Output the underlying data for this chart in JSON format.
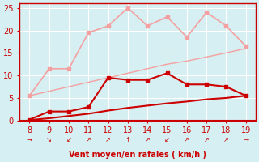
{
  "x": [
    8,
    9,
    10,
    11,
    12,
    13,
    14,
    15,
    16,
    17,
    18,
    19
  ],
  "line_light_pink": [
    5.5,
    11.5,
    11.5,
    19.5,
    21.0,
    25.0,
    21.0,
    23.0,
    18.5,
    24.0,
    21.0,
    16.5
  ],
  "line_diagonal": [
    5.5,
    6.5,
    7.5,
    8.5,
    9.5,
    10.5,
    11.5,
    12.5,
    13.2,
    14.1,
    15.0,
    16.0
  ],
  "line_dark_red": [
    0.2,
    2.0,
    2.0,
    3.0,
    9.5,
    9.0,
    9.0,
    10.5,
    8.0,
    8.0,
    7.5,
    5.5
  ],
  "line_bottom": [
    0.1,
    0.5,
    1.0,
    1.5,
    2.2,
    2.8,
    3.3,
    3.8,
    4.2,
    4.7,
    5.0,
    5.5
  ],
  "color_light_pink": "#f4a0a0",
  "color_diagonal": "#f4a0a0",
  "color_dark_red": "#cc0000",
  "color_bottom": "#cc0000",
  "bg_color": "#d6eff2",
  "grid_color": "#ffffff",
  "axis_color": "#cc0000",
  "xlabel": "Vent moyen/en rafales ( km/h )",
  "ylim": [
    0,
    26
  ],
  "xlim": [
    7.5,
    19.5
  ],
  "yticks": [
    0,
    5,
    10,
    15,
    20,
    25
  ],
  "xticks": [
    8,
    9,
    10,
    11,
    12,
    13,
    14,
    15,
    16,
    17,
    18,
    19
  ]
}
